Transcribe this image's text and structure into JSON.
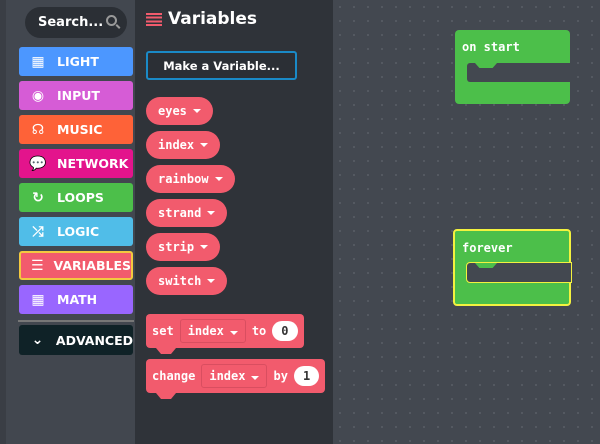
{
  "search": {
    "placeholder": "Search..."
  },
  "categories": [
    {
      "label": "LIGHT",
      "icon": "grid-icon",
      "color": "#4c97ff"
    },
    {
      "label": "INPUT",
      "icon": "target-icon",
      "color": "#d65cd6"
    },
    {
      "label": "MUSIC",
      "icon": "headphones-icon",
      "color": "#fe6238"
    },
    {
      "label": "NETWORK",
      "icon": "chat-icon",
      "color": "#e3148c"
    },
    {
      "label": "LOOPS",
      "icon": "refresh-icon",
      "color": "#4cbf4a"
    },
    {
      "label": "LOGIC",
      "icon": "shuffle-icon",
      "color": "#50bde8"
    },
    {
      "label": "VARIABLES",
      "icon": "bars-icon",
      "color": "#f25b6d",
      "selected": true
    },
    {
      "label": "MATH",
      "icon": "calculator-icon",
      "color": "#9966ff"
    },
    {
      "label": "ADVANCED",
      "icon": "chevron-down-icon",
      "color": "#0f2227"
    }
  ],
  "flyout": {
    "title": "Variables",
    "make_variable": "Make a Variable...",
    "variables": [
      "eyes",
      "index",
      "rainbow",
      "strand",
      "strip",
      "switch"
    ],
    "set_block": {
      "kw": "set",
      "var": "index",
      "to": "to",
      "value": "0"
    },
    "change_block": {
      "kw": "change",
      "var": "index",
      "by": "by",
      "value": "1"
    }
  },
  "workspace": {
    "on_start": "on start",
    "forever": "forever"
  }
}
